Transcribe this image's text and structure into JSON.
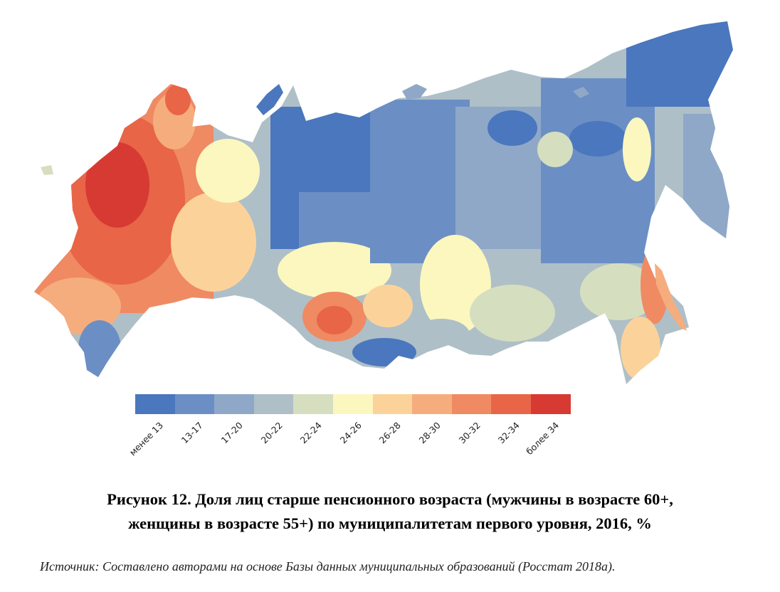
{
  "legend": {
    "items": [
      {
        "label": "менее 13",
        "color": "#4a77bd"
      },
      {
        "label": "13-17",
        "color": "#6b8fc4"
      },
      {
        "label": "17-20",
        "color": "#8fa8c8"
      },
      {
        "label": "20-22",
        "color": "#aebfc7"
      },
      {
        "label": "22-24",
        "color": "#d6dec0"
      },
      {
        "label": "24-26",
        "color": "#fbf7bf"
      },
      {
        "label": "26-28",
        "color": "#fbd39a"
      },
      {
        "label": "28-30",
        "color": "#f6ad7e"
      },
      {
        "label": "30-32",
        "color": "#ef8a63"
      },
      {
        "label": "32-34",
        "color": "#e86547"
      },
      {
        "label": "более 34",
        "color": "#d73a32"
      }
    ]
  },
  "caption": {
    "line1": "Рисунок 12. Доля лиц старше пенсионного возраста (мужчины в возрасте 60+,",
    "line2": "женщины в возрасте 55+) по муниципалитетам первого уровня, 2016, %"
  },
  "source": {
    "text": "Источник: Составлено авторами на основе Базы данных муниципальных образований (Росстат 2018а)."
  }
}
